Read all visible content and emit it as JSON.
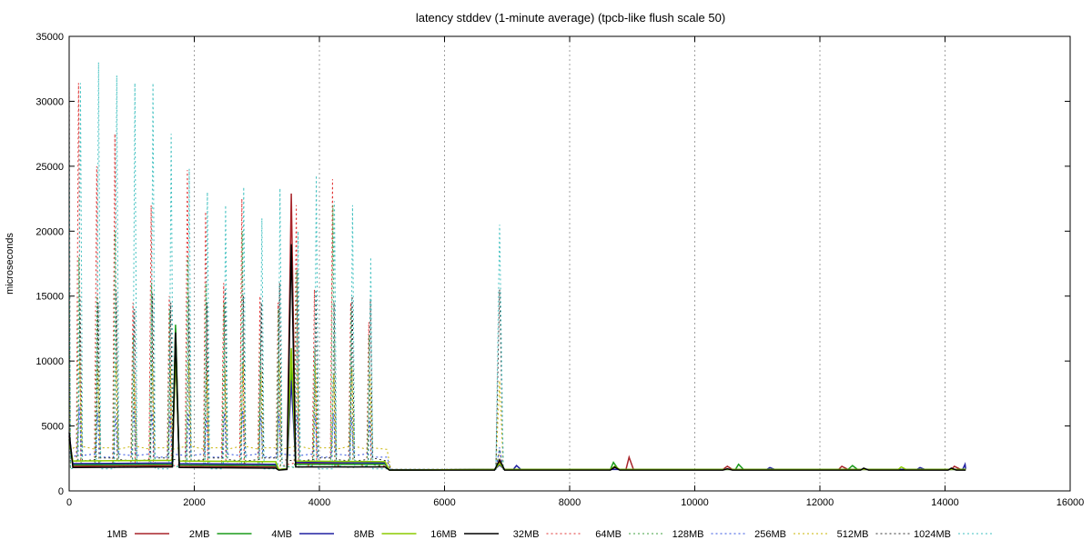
{
  "chart_data": {
    "type": "line",
    "title": "latency stddev (1-minute average) (tpcb-like flush scale 50)",
    "xlabel": "",
    "ylabel": "microseconds",
    "xlim": [
      0,
      16000
    ],
    "ylim": [
      0,
      35000
    ],
    "x_ticks": [
      0,
      2000,
      4000,
      6000,
      8000,
      10000,
      12000,
      14000,
      16000
    ],
    "y_ticks": [
      0,
      5000,
      10000,
      15000,
      20000,
      25000,
      30000,
      35000
    ],
    "grid": "vertical-dotted",
    "legend_position": "bottom",
    "series": [
      {
        "name": "1MB",
        "color": "#a8242a",
        "dashed": false,
        "points": [
          [
            0,
            4200
          ],
          [
            60,
            1900
          ],
          [
            1650,
            1950
          ],
          [
            1700,
            12500
          ],
          [
            1760,
            1900
          ],
          [
            3300,
            1850
          ],
          [
            3350,
            1650
          ],
          [
            3480,
            1700
          ],
          [
            3550,
            22900
          ],
          [
            3620,
            2100
          ],
          [
            5050,
            2050
          ],
          [
            5120,
            1600
          ],
          [
            6800,
            1650
          ],
          [
            6880,
            2200
          ],
          [
            6960,
            1650
          ],
          [
            8650,
            1650
          ],
          [
            8720,
            1800
          ],
          [
            8800,
            1650
          ],
          [
            8900,
            1650
          ],
          [
            8950,
            2600
          ],
          [
            9020,
            1650
          ],
          [
            10450,
            1650
          ],
          [
            10520,
            1900
          ],
          [
            10600,
            1650
          ],
          [
            12300,
            1650
          ],
          [
            12350,
            1900
          ],
          [
            12450,
            1650
          ],
          [
            14100,
            1650
          ],
          [
            14150,
            1900
          ],
          [
            14250,
            1650
          ],
          [
            14330,
            1650
          ]
        ]
      },
      {
        "name": "2MB",
        "color": "#1a9b1a",
        "dashed": false,
        "points": [
          [
            0,
            4000
          ],
          [
            60,
            2000
          ],
          [
            1650,
            2050
          ],
          [
            1700,
            12800
          ],
          [
            1760,
            2000
          ],
          [
            3300,
            1950
          ],
          [
            3350,
            1650
          ],
          [
            3480,
            1700
          ],
          [
            3550,
            9800
          ],
          [
            3620,
            2050
          ],
          [
            5050,
            2050
          ],
          [
            5120,
            1600
          ],
          [
            6800,
            1650
          ],
          [
            6880,
            2100
          ],
          [
            6960,
            1650
          ],
          [
            8650,
            1650
          ],
          [
            8700,
            2200
          ],
          [
            8780,
            1650
          ],
          [
            10650,
            1650
          ],
          [
            10700,
            2050
          ],
          [
            10780,
            1650
          ],
          [
            12450,
            1650
          ],
          [
            12520,
            1950
          ],
          [
            12600,
            1650
          ],
          [
            14330,
            1650
          ]
        ]
      },
      {
        "name": "4MB",
        "color": "#2020a0",
        "dashed": false,
        "points": [
          [
            0,
            4300
          ],
          [
            60,
            2100
          ],
          [
            1650,
            2150
          ],
          [
            1700,
            11000
          ],
          [
            1760,
            2100
          ],
          [
            3300,
            2050
          ],
          [
            3350,
            1650
          ],
          [
            3480,
            1700
          ],
          [
            3550,
            8500
          ],
          [
            3620,
            2200
          ],
          [
            5050,
            2150
          ],
          [
            5120,
            1600
          ],
          [
            6800,
            1650
          ],
          [
            6880,
            2000
          ],
          [
            6960,
            1650
          ],
          [
            7100,
            1650
          ],
          [
            7150,
            1950
          ],
          [
            7220,
            1650
          ],
          [
            11150,
            1650
          ],
          [
            11200,
            1800
          ],
          [
            11280,
            1650
          ],
          [
            13550,
            1650
          ],
          [
            13600,
            1800
          ],
          [
            13680,
            1650
          ],
          [
            14280,
            1650
          ],
          [
            14320,
            2050
          ],
          [
            14330,
            1700
          ]
        ]
      },
      {
        "name": "8MB",
        "color": "#8ccc00",
        "dashed": false,
        "points": [
          [
            0,
            3900
          ],
          [
            60,
            2300
          ],
          [
            1650,
            2350
          ],
          [
            1700,
            10500
          ],
          [
            1760,
            2300
          ],
          [
            3300,
            2250
          ],
          [
            3350,
            1650
          ],
          [
            3480,
            1700
          ],
          [
            3550,
            11000
          ],
          [
            3620,
            2300
          ],
          [
            5050,
            2250
          ],
          [
            5120,
            1600
          ],
          [
            6800,
            1650
          ],
          [
            6880,
            2100
          ],
          [
            6960,
            1650
          ],
          [
            8650,
            1650
          ],
          [
            8720,
            1900
          ],
          [
            8800,
            1650
          ],
          [
            13250,
            1650
          ],
          [
            13300,
            1850
          ],
          [
            13380,
            1650
          ],
          [
            14330,
            1650
          ]
        ]
      },
      {
        "name": "16MB",
        "color": "#000000",
        "dashed": false,
        "points": [
          [
            0,
            4500
          ],
          [
            60,
            1800
          ],
          [
            1650,
            1850
          ],
          [
            1700,
            12200
          ],
          [
            1760,
            1800
          ],
          [
            3300,
            1750
          ],
          [
            3350,
            1600
          ],
          [
            3480,
            1650
          ],
          [
            3550,
            19000
          ],
          [
            3620,
            1850
          ],
          [
            5050,
            1850
          ],
          [
            5120,
            1600
          ],
          [
            6800,
            1600
          ],
          [
            6880,
            2400
          ],
          [
            6960,
            1600
          ],
          [
            8650,
            1600
          ],
          [
            8720,
            1850
          ],
          [
            8800,
            1600
          ],
          [
            10450,
            1600
          ],
          [
            10520,
            1700
          ],
          [
            10600,
            1600
          ],
          [
            12650,
            1600
          ],
          [
            12700,
            1750
          ],
          [
            12780,
            1600
          ],
          [
            14050,
            1600
          ],
          [
            14100,
            1750
          ],
          [
            14180,
            1600
          ],
          [
            14330,
            1600
          ]
        ]
      },
      {
        "name": "32MB",
        "color": "#e03030",
        "dashed": true,
        "peaks": [
          31400,
          25000,
          27500,
          14500,
          22000,
          15000,
          24700,
          21500,
          16000,
          22500,
          15000,
          14500,
          22000,
          15500,
          24000,
          14500,
          13000
        ],
        "base": 1900
      },
      {
        "name": "64MB",
        "color": "#40a040",
        "dashed": true,
        "peaks": [
          18000,
          15000,
          20000,
          12000,
          16000,
          14000,
          18000,
          16000,
          14500,
          20000,
          12000,
          14000,
          17000,
          11000,
          22000,
          14000,
          12000
        ],
        "base": 1800
      },
      {
        "name": "128MB",
        "color": "#3050e0",
        "dashed": true,
        "peaks": [
          6500,
          6000,
          5800,
          6200,
          6000,
          5800,
          6000,
          5700,
          6000,
          6200,
          5800,
          6000,
          5900,
          5800,
          6000,
          5700,
          5500
        ],
        "base": 2600
      },
      {
        "name": "256MB",
        "color": "#c8b400",
        "dashed": true,
        "peaks": [
          10000,
          9500,
          9800,
          9000,
          9800,
          9500,
          10000,
          9000,
          9500,
          9800,
          9200,
          10000,
          9500,
          9800,
          9000,
          9500,
          9000
        ],
        "base": 3200
      },
      {
        "name": "512MB",
        "color": "#303030",
        "dashed": true,
        "peaks": [
          15000,
          14500,
          15500,
          14000,
          15200,
          14500,
          15000,
          14500,
          15500,
          15000,
          14500,
          16000,
          17000,
          15500,
          14500,
          15000,
          14800
        ],
        "base": 2300
      },
      {
        "name": "1024MB",
        "color": "#40c0c0",
        "dashed": true,
        "peaks": [
          31400,
          33000,
          32000,
          31400,
          31400,
          27500,
          24800,
          23000,
          22000,
          23400,
          21000,
          23300,
          20000,
          24300,
          22300,
          22000,
          18000
        ],
        "base": 1700
      }
    ]
  }
}
